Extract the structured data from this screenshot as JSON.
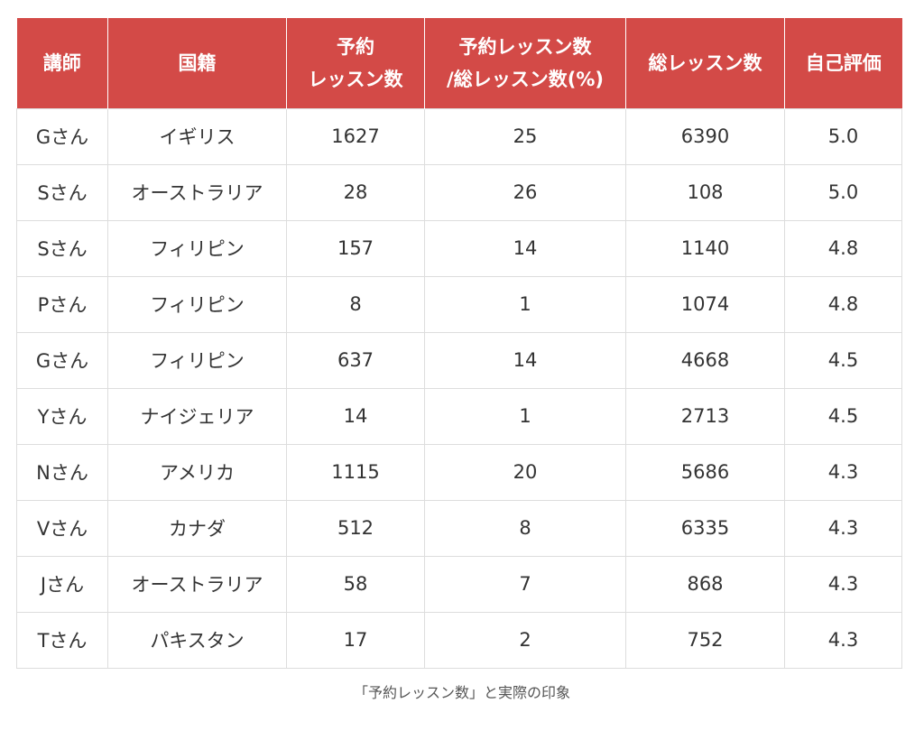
{
  "table": {
    "headers": [
      [
        "講師"
      ],
      [
        "国籍"
      ],
      [
        "予約",
        "レッスン数"
      ],
      [
        "予約レッスン数",
        "/総レッスン数(%)"
      ],
      [
        "総レッスン数"
      ],
      [
        "自己評価"
      ]
    ],
    "rows": [
      [
        "Gさん",
        "イギリス",
        "1627",
        "25",
        "6390",
        "5.0"
      ],
      [
        "Sさん",
        "オーストラリア",
        "28",
        "26",
        "108",
        "5.0"
      ],
      [
        "Sさん",
        "フィリピン",
        "157",
        "14",
        "1140",
        "4.8"
      ],
      [
        "Pさん",
        "フィリピン",
        "8",
        "1",
        "1074",
        "4.8"
      ],
      [
        "Gさん",
        "フィリピン",
        "637",
        "14",
        "4668",
        "4.5"
      ],
      [
        "Yさん",
        "ナイジェリア",
        "14",
        "1",
        "2713",
        "4.5"
      ],
      [
        "Nさん",
        "アメリカ",
        "1115",
        "20",
        "5686",
        "4.3"
      ],
      [
        "Vさん",
        "カナダ",
        "512",
        "8",
        "6335",
        "4.3"
      ],
      [
        "Jさん",
        "オーストラリア",
        "58",
        "7",
        "868",
        "4.3"
      ],
      [
        "Tさん",
        "パキスタン",
        "17",
        "2",
        "752",
        "4.3"
      ]
    ]
  },
  "caption": "「予約レッスン数」と実際の印象",
  "colors": {
    "header_background": "#d34a47",
    "header_text": "#ffffff",
    "border": "#dddddd",
    "body_text": "#333333"
  }
}
